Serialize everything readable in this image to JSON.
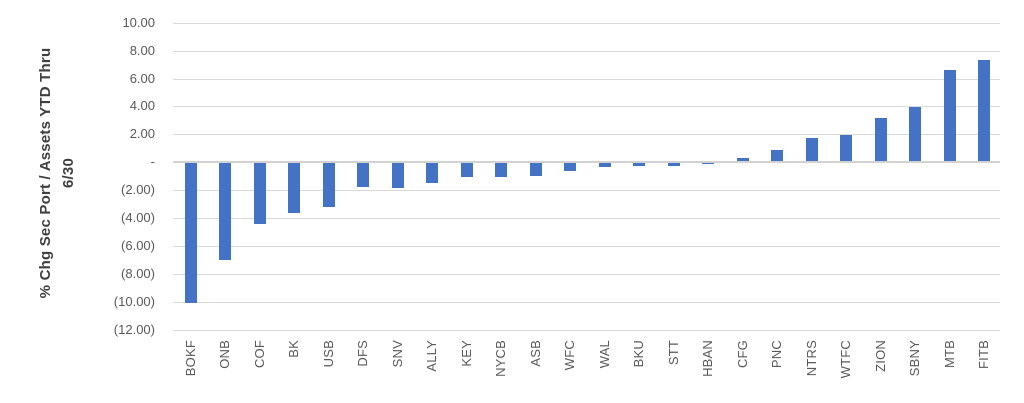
{
  "chart_data": {
    "type": "bar",
    "title": "",
    "ylabel_line1": "% Chg Sec Port / Assets YTD Thru",
    "ylabel_line2": "6/30",
    "xlabel": "",
    "categories": [
      "BOKF",
      "ONB",
      "COF",
      "BK",
      "USB",
      "DFS",
      "SNV",
      "ALLY",
      "KEY",
      "NYCB",
      "ASB",
      "WFC",
      "WAL",
      "BKU",
      "STT",
      "HBAN",
      "CFG",
      "PNC",
      "NTRS",
      "WTFC",
      "ZION",
      "SBNY",
      "MTB",
      "FITB"
    ],
    "values": [
      -10.1,
      -7.05,
      -4.4,
      -3.65,
      -3.2,
      -1.75,
      -1.85,
      -1.5,
      -1.1,
      -1.05,
      -1.0,
      -0.6,
      -0.35,
      -0.3,
      -0.25,
      -0.15,
      0.3,
      0.85,
      1.75,
      1.95,
      3.2,
      3.95,
      6.6,
      7.35
    ],
    "y_ticks": [
      {
        "value": 10,
        "label": "10.00"
      },
      {
        "value": 8,
        "label": "8.00"
      },
      {
        "value": 6,
        "label": "6.00"
      },
      {
        "value": 4,
        "label": "4.00"
      },
      {
        "value": 2,
        "label": "2.00"
      },
      {
        "value": 0,
        "label": "-"
      },
      {
        "value": -2,
        "label": "(2.00)"
      },
      {
        "value": -4,
        "label": "(4.00)"
      },
      {
        "value": -6,
        "label": "(6.00)"
      },
      {
        "value": -8,
        "label": "(8.00)"
      },
      {
        "value": -10,
        "label": "(10.00)"
      },
      {
        "value": -12,
        "label": "(12.00)"
      }
    ],
    "ylim": [
      -12,
      10
    ],
    "grid": "horizontal",
    "legend_position": "none",
    "bar_color": "#4472C4",
    "gridline_color": "#D9D9D9",
    "zero_line_color": "#D2D2D2",
    "tick_label_color": "#595959",
    "axis_title_color": "#3F3F3F"
  }
}
